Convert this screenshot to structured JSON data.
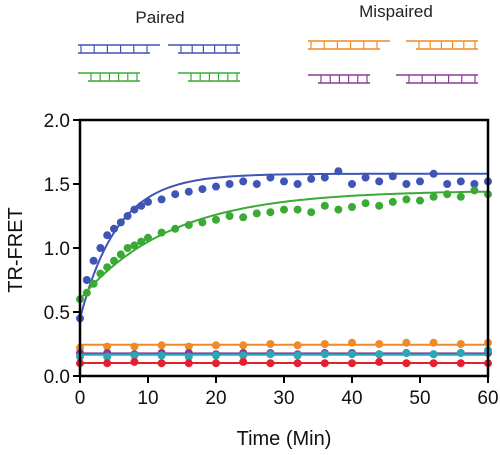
{
  "legend": {
    "groups": [
      {
        "title": "Paired",
        "colors": [
          "#3f55b5",
          "#3f55b5",
          "#3aaa35",
          "#3aaa35"
        ]
      },
      {
        "title": "Mispaired",
        "colors": [
          "#f08a24",
          "#f08a24",
          "#8a3c96",
          "#8a3c96"
        ]
      }
    ]
  },
  "chart_data": {
    "type": "scatter",
    "title": "",
    "xlabel": "Time (Min)",
    "ylabel": "TR-FRET",
    "xlim": [
      0,
      60
    ],
    "ylim": [
      0,
      2.0
    ],
    "xticks": [
      "0",
      "10",
      "20",
      "30",
      "40",
      "50",
      "60"
    ],
    "yticks": [
      "0.0",
      "0.5",
      "1.0",
      "1.5",
      "2.0"
    ],
    "xtick_values": [
      0,
      10,
      20,
      30,
      40,
      50,
      60
    ],
    "ytick_values": [
      0,
      0.5,
      1.0,
      1.5,
      2.0
    ],
    "grid": false,
    "legend_position": "top",
    "series": [
      {
        "color": "#3f55b5",
        "fit": "exponential",
        "x": [
          0,
          1,
          2,
          3,
          4,
          5,
          6,
          7,
          8,
          9,
          10,
          12,
          14,
          16,
          18,
          20,
          22,
          24,
          26,
          28,
          30,
          32,
          34,
          36,
          38,
          40,
          42,
          44,
          46,
          48,
          50,
          52,
          54,
          56,
          58,
          60
        ],
        "y": [
          0.45,
          0.75,
          0.9,
          1.0,
          1.1,
          1.15,
          1.2,
          1.25,
          1.3,
          1.33,
          1.36,
          1.38,
          1.42,
          1.44,
          1.46,
          1.48,
          1.5,
          1.52,
          1.5,
          1.55,
          1.52,
          1.5,
          1.54,
          1.55,
          1.6,
          1.5,
          1.55,
          1.52,
          1.56,
          1.5,
          1.52,
          1.58,
          1.5,
          1.52,
          1.5,
          1.52
        ]
      },
      {
        "color": "#3aaa35",
        "fit": "exponential",
        "x": [
          0,
          1,
          2,
          3,
          4,
          5,
          6,
          7,
          8,
          9,
          10,
          12,
          14,
          16,
          18,
          20,
          22,
          24,
          26,
          28,
          30,
          32,
          34,
          36,
          38,
          40,
          42,
          44,
          46,
          48,
          50,
          52,
          54,
          56,
          58,
          60
        ],
        "y": [
          0.6,
          0.65,
          0.72,
          0.8,
          0.85,
          0.9,
          0.95,
          1.0,
          1.02,
          1.05,
          1.08,
          1.12,
          1.15,
          1.18,
          1.2,
          1.22,
          1.25,
          1.24,
          1.27,
          1.28,
          1.3,
          1.3,
          1.28,
          1.33,
          1.3,
          1.32,
          1.35,
          1.33,
          1.36,
          1.38,
          1.37,
          1.4,
          1.42,
          1.4,
          1.45,
          1.42
        ]
      },
      {
        "color": "#f08a24",
        "fit": "flat",
        "x": [
          0,
          4,
          8,
          12,
          16,
          20,
          24,
          28,
          32,
          36,
          40,
          44,
          48,
          52,
          56,
          60
        ],
        "y": [
          0.22,
          0.23,
          0.23,
          0.24,
          0.23,
          0.24,
          0.24,
          0.25,
          0.24,
          0.25,
          0.26,
          0.25,
          0.26,
          0.26,
          0.25,
          0.26
        ]
      },
      {
        "color": "#8a3c96",
        "fit": "flat",
        "x": [
          0,
          4,
          8,
          12,
          16,
          20,
          24,
          28,
          32,
          36,
          40,
          44,
          48,
          52,
          56,
          60
        ],
        "y": [
          0.18,
          0.18,
          0.17,
          0.18,
          0.18,
          0.17,
          0.18,
          0.18,
          0.17,
          0.18,
          0.18,
          0.17,
          0.18,
          0.17,
          0.18,
          0.18
        ]
      },
      {
        "color": "#2aa8b8",
        "fit": "flat",
        "x": [
          0,
          4,
          8,
          12,
          16,
          20,
          24,
          28,
          32,
          36,
          40,
          44,
          48,
          52,
          56,
          60
        ],
        "y": [
          0.15,
          0.15,
          0.16,
          0.16,
          0.15,
          0.16,
          0.16,
          0.17,
          0.16,
          0.17,
          0.17,
          0.17,
          0.18,
          0.17,
          0.18,
          0.2
        ]
      },
      {
        "color": "#e5202e",
        "fit": "flat",
        "x": [
          0,
          4,
          8,
          12,
          16,
          20,
          24,
          28,
          32,
          36,
          40,
          44,
          48,
          52,
          56,
          60
        ],
        "y": [
          0.1,
          0.1,
          0.11,
          0.1,
          0.1,
          0.1,
          0.11,
          0.1,
          0.1,
          0.1,
          0.1,
          0.11,
          0.1,
          0.1,
          0.1,
          0.1
        ]
      }
    ]
  }
}
